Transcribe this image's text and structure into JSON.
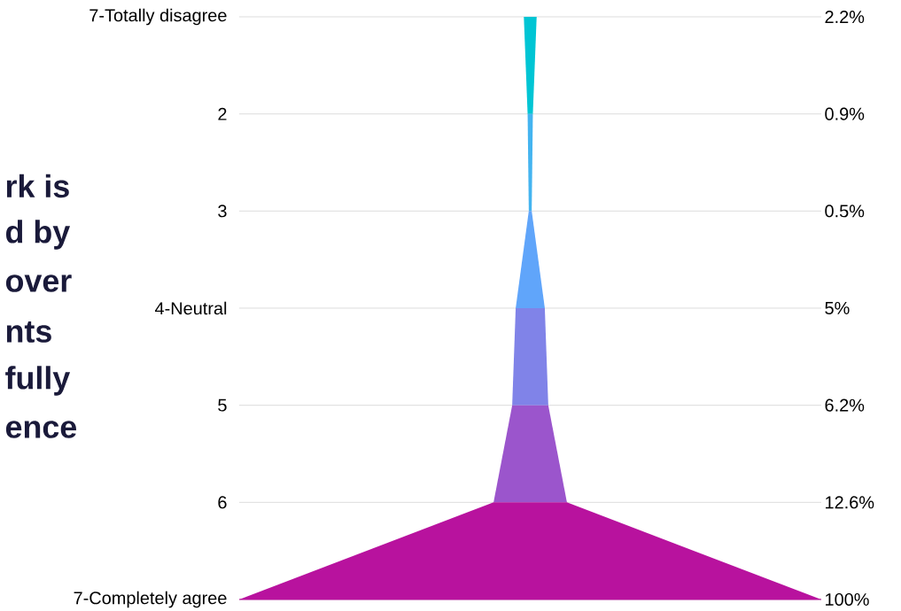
{
  "chart_data": {
    "type": "other",
    "categories": [
      "7-Totally disagree",
      "2",
      "3",
      "4-Neutral",
      "5",
      "6",
      "7-Completely agree"
    ],
    "values": [
      2.2,
      0.9,
      0.5,
      5,
      6.2,
      12.6,
      100
    ],
    "value_labels": [
      "2.2%",
      "0.9%",
      "0.5%",
      "5%",
      "6.2%",
      "12.6%",
      "100%"
    ],
    "colors": [
      "#00c5d4",
      "#44b4f0",
      "#60a5fa",
      "#8083e8",
      "#9b55cc",
      "#b8129e",
      "#b8129e"
    ],
    "annotations": [
      "rk is",
      "d by",
      "over",
      "nts",
      "fully",
      "ence"
    ]
  }
}
